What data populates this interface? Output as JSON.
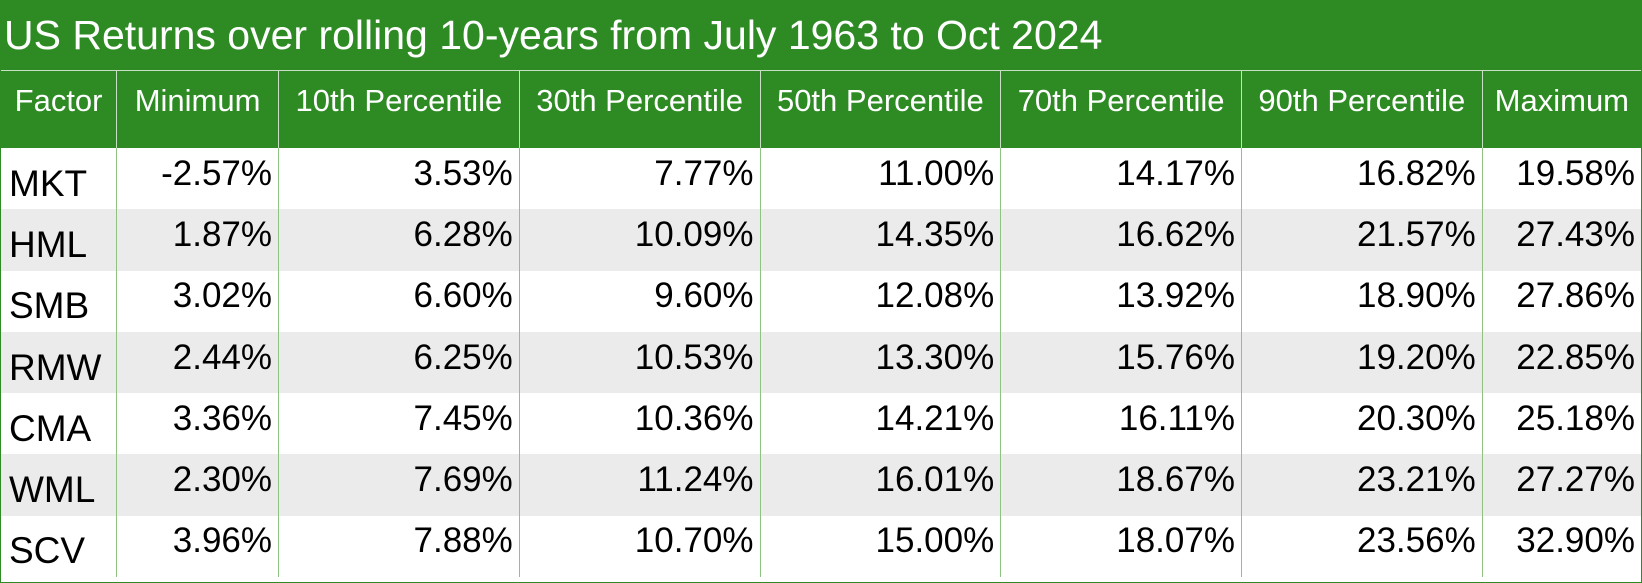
{
  "chart_data": {
    "type": "table",
    "title": "US Returns over rolling 10-years from July 1963 to Oct 2024",
    "columns": [
      "Factor",
      "Minimum",
      "10th Percentile",
      "30th Percentile",
      "50th Percentile",
      "70th Percentile",
      "90th Percentile",
      "Maximum"
    ],
    "rows": [
      {
        "factor": "MKT",
        "values": [
          "-2.57%",
          "3.53%",
          "7.77%",
          "11.00%",
          "14.17%",
          "16.82%",
          "19.58%"
        ]
      },
      {
        "factor": "HML",
        "values": [
          "1.87%",
          "6.28%",
          "10.09%",
          "14.35%",
          "16.62%",
          "21.57%",
          "27.43%"
        ]
      },
      {
        "factor": "SMB",
        "values": [
          "3.02%",
          "6.60%",
          "9.60%",
          "12.08%",
          "13.92%",
          "18.90%",
          "27.86%"
        ]
      },
      {
        "factor": "RMW",
        "values": [
          "2.44%",
          "6.25%",
          "10.53%",
          "13.30%",
          "15.76%",
          "19.20%",
          "22.85%"
        ]
      },
      {
        "factor": "CMA",
        "values": [
          "3.36%",
          "7.45%",
          "10.36%",
          "14.21%",
          "16.11%",
          "20.30%",
          "25.18%"
        ]
      },
      {
        "factor": "WML",
        "values": [
          "2.30%",
          "7.69%",
          "11.24%",
          "16.01%",
          "18.67%",
          "23.21%",
          "27.27%"
        ]
      },
      {
        "factor": "SCV",
        "values": [
          "3.96%",
          "7.88%",
          "10.70%",
          "15.00%",
          "18.07%",
          "23.56%",
          "32.90%"
        ]
      }
    ]
  },
  "colors": {
    "header_bg": "#2e8b24",
    "header_text": "#ffffff",
    "row_alt_bg": "#ebebeb",
    "row_bg": "#ffffff"
  }
}
